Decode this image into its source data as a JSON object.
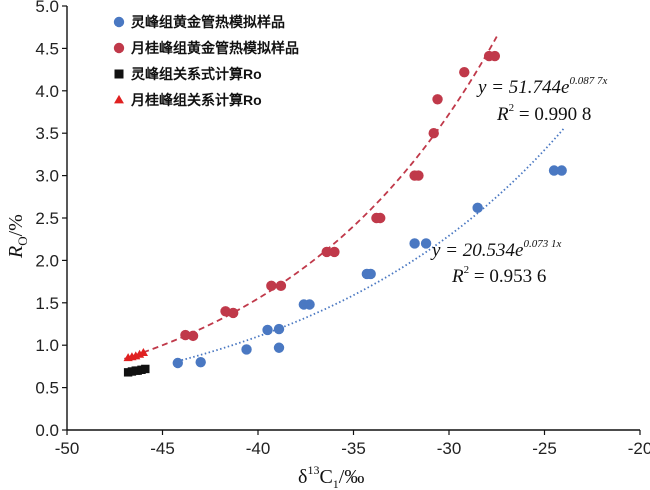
{
  "chart_data": {
    "type": "scatter",
    "xlabel": "δ13C1/‰",
    "ylabel": "RO/%",
    "xlim": [
      -50,
      -20
    ],
    "ylim": [
      0.0,
      5.0
    ],
    "x_ticks": [
      -50,
      -45,
      -40,
      -35,
      -30,
      -25,
      -20
    ],
    "x_tick_labels": [
      "-50",
      "-45",
      "-40",
      "-35",
      "-30",
      "-25",
      "-20"
    ],
    "y_ticks": [
      0.0,
      0.5,
      1.0,
      1.5,
      2.0,
      2.5,
      3.0,
      3.5,
      4.0,
      4.5,
      5.0
    ],
    "y_tick_labels": [
      "0.0",
      "0.5",
      "1.0",
      "1.5",
      "2.0",
      "2.5",
      "3.0",
      "3.5",
      "4.0",
      "4.5",
      "5.0"
    ],
    "grid": false,
    "legend_position": "top-left",
    "series": [
      {
        "name": "灵峰组黄金管热模拟样品",
        "marker": "circle",
        "color": "#4a78c2",
        "points": [
          [
            -44.2,
            0.79
          ],
          [
            -43.0,
            0.8
          ],
          [
            -40.6,
            0.95
          ],
          [
            -39.5,
            1.18
          ],
          [
            -38.9,
            1.19
          ],
          [
            -38.9,
            0.97
          ],
          [
            -37.6,
            1.48
          ],
          [
            -37.3,
            1.48
          ],
          [
            -34.3,
            1.84
          ],
          [
            -34.1,
            1.84
          ],
          [
            -31.8,
            2.2
          ],
          [
            -31.2,
            2.2
          ],
          [
            -28.5,
            2.62
          ],
          [
            -24.5,
            3.06
          ],
          [
            -24.1,
            3.06
          ]
        ]
      },
      {
        "name": "月桂峰组黄金管热模拟样品",
        "marker": "circle",
        "color": "#c0394a",
        "points": [
          [
            -43.8,
            1.12
          ],
          [
            -43.4,
            1.11
          ],
          [
            -41.7,
            1.4
          ],
          [
            -41.3,
            1.38
          ],
          [
            -39.3,
            1.7
          ],
          [
            -38.8,
            1.7
          ],
          [
            -36.4,
            2.1
          ],
          [
            -36.0,
            2.1
          ],
          [
            -33.8,
            2.5
          ],
          [
            -33.6,
            2.5
          ],
          [
            -31.8,
            3.0
          ],
          [
            -31.6,
            3.0
          ],
          [
            -30.8,
            3.5
          ],
          [
            -30.6,
            3.9
          ],
          [
            -29.2,
            4.22
          ],
          [
            -27.9,
            4.41
          ],
          [
            -27.6,
            4.41
          ]
        ]
      },
      {
        "name": "灵峰组关系式计算Ro",
        "marker": "square",
        "color": "#111111",
        "points": [
          [
            -46.8,
            0.68
          ],
          [
            -46.6,
            0.69
          ],
          [
            -46.4,
            0.7
          ],
          [
            -46.3,
            0.7
          ],
          [
            -46.1,
            0.71
          ],
          [
            -45.9,
            0.72
          ]
        ]
      },
      {
        "name": "月桂峰组关系计算Ro",
        "marker": "triangle",
        "color": "#e02020",
        "points": [
          [
            -46.8,
            0.85
          ],
          [
            -46.6,
            0.86
          ],
          [
            -46.4,
            0.87
          ],
          [
            -46.2,
            0.89
          ],
          [
            -46.0,
            0.91
          ]
        ]
      }
    ],
    "fits": [
      {
        "series": "月桂峰组黄金管热模拟样品",
        "a": 51.744,
        "b": 0.0877,
        "x_range": [
          -47.0,
          -27.5
        ],
        "color": "#c0394a",
        "style": "dashed",
        "equation_y": "y = 51.744e",
        "equation_exp": "0.087 7x",
        "r2_label": "R",
        "r2_value": " = 0.990 8"
      },
      {
        "series": "灵峰组黄金管热模拟样品",
        "a": 20.534,
        "b": 0.0731,
        "x_range": [
          -44.2,
          -24.0
        ],
        "color": "#4a78c2",
        "style": "dotted",
        "equation_y": "y = 20.534e",
        "equation_exp": "0.073 1x",
        "r2_label": "R",
        "r2_value": " = 0.953 6"
      }
    ]
  },
  "axes": {
    "x_title_main": "δ",
    "x_title_sup": "13",
    "x_title_rest": "C",
    "x_title_sub": "1",
    "x_title_unit": "/‰",
    "y_title_main": "R",
    "y_title_sub": "O",
    "y_title_unit": "/%"
  }
}
